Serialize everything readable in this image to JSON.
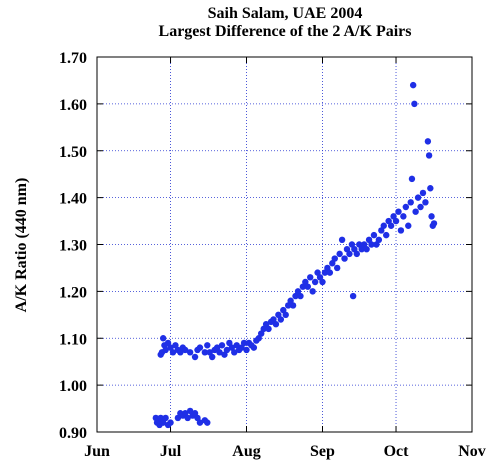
{
  "chart_data": {
    "type": "scatter",
    "title": "Saih Salam, UAE  2004",
    "subtitle": "Largest Difference of the 2 A/K Pairs",
    "y_label": "A/K Ratio (440 nm)",
    "color": "#1f2fe6",
    "grid": true,
    "xlim": [
      0,
      153
    ],
    "xticks": [
      {
        "value": 0,
        "label": "Jun"
      },
      {
        "value": 30,
        "label": "Jul"
      },
      {
        "value": 61,
        "label": "Aug"
      },
      {
        "value": 92,
        "label": "Sep"
      },
      {
        "value": 122,
        "label": "Oct"
      },
      {
        "value": 153,
        "label": "Nov"
      }
    ],
    "ylim": [
      0.9,
      1.7
    ],
    "yticks": [
      {
        "value": 0.9,
        "label": "0.90"
      },
      {
        "value": 1.0,
        "label": "1.00"
      },
      {
        "value": 1.1,
        "label": "1.10"
      },
      {
        "value": 1.2,
        "label": "1.20"
      },
      {
        "value": 1.3,
        "label": "1.30"
      },
      {
        "value": 1.4,
        "label": "1.40"
      },
      {
        "value": 1.5,
        "label": "1.50"
      },
      {
        "value": 1.6,
        "label": "1.60"
      },
      {
        "value": 1.7,
        "label": "1.70"
      }
    ],
    "x": [
      24,
      24.5,
      25,
      25.5,
      26,
      27,
      28,
      29,
      30,
      33,
      34,
      35,
      36,
      37,
      38,
      39,
      40,
      41,
      42,
      44,
      45,
      26,
      26.5,
      27,
      27.5,
      28,
      29,
      30,
      31,
      32,
      33,
      34,
      35,
      36,
      38,
      40,
      41,
      42,
      44,
      45,
      46,
      47,
      48,
      49,
      50,
      51,
      52,
      53,
      54,
      55,
      56,
      57,
      58,
      59,
      60,
      61,
      62,
      63,
      64,
      65,
      66,
      67,
      68,
      69,
      70,
      71,
      72,
      73,
      74,
      75,
      76,
      77,
      78,
      79,
      80,
      81,
      82,
      83,
      84,
      85,
      86,
      87,
      88,
      89,
      90,
      91,
      92,
      93,
      94,
      95,
      96,
      97,
      98,
      99,
      100,
      101,
      102,
      103,
      104,
      104.5,
      105,
      106,
      107,
      108,
      109,
      110,
      111,
      112,
      113,
      114,
      115,
      116,
      117,
      118,
      119,
      120,
      121,
      122,
      123,
      124,
      125,
      126,
      127,
      128,
      128.5,
      129,
      129.5,
      130,
      131,
      132,
      133,
      134,
      135,
      135.5,
      136,
      136.5,
      137,
      137.5
    ],
    "values": [
      0.93,
      0.92,
      0.925,
      0.915,
      0.93,
      0.92,
      0.93,
      0.915,
      0.92,
      0.93,
      0.94,
      0.935,
      0.94,
      0.93,
      0.945,
      0.935,
      0.94,
      0.93,
      0.92,
      0.925,
      0.92,
      1.065,
      1.07,
      1.1,
      1.085,
      1.075,
      1.09,
      1.08,
      1.07,
      1.085,
      1.075,
      1.07,
      1.08,
      1.075,
      1.07,
      1.06,
      1.075,
      1.08,
      1.07,
      1.085,
      1.07,
      1.06,
      1.075,
      1.08,
      1.07,
      1.085,
      1.065,
      1.075,
      1.09,
      1.08,
      1.07,
      1.085,
      1.075,
      1.08,
      1.09,
      1.075,
      1.09,
      1.085,
      1.08,
      1.095,
      1.1,
      1.11,
      1.12,
      1.13,
      1.12,
      1.135,
      1.14,
      1.13,
      1.15,
      1.14,
      1.16,
      1.15,
      1.17,
      1.18,
      1.17,
      1.19,
      1.2,
      1.19,
      1.21,
      1.22,
      1.21,
      1.23,
      1.2,
      1.22,
      1.24,
      1.23,
      1.22,
      1.24,
      1.25,
      1.24,
      1.26,
      1.27,
      1.25,
      1.28,
      1.31,
      1.27,
      1.29,
      1.28,
      1.3,
      1.19,
      1.29,
      1.28,
      1.3,
      1.29,
      1.3,
      1.29,
      1.31,
      1.3,
      1.32,
      1.3,
      1.31,
      1.33,
      1.34,
      1.32,
      1.35,
      1.34,
      1.36,
      1.35,
      1.37,
      1.33,
      1.36,
      1.38,
      1.34,
      1.39,
      1.44,
      1.64,
      1.6,
      1.37,
      1.4,
      1.38,
      1.41,
      1.39,
      1.52,
      1.49,
      1.42,
      1.36,
      1.34,
      1.345
    ]
  }
}
